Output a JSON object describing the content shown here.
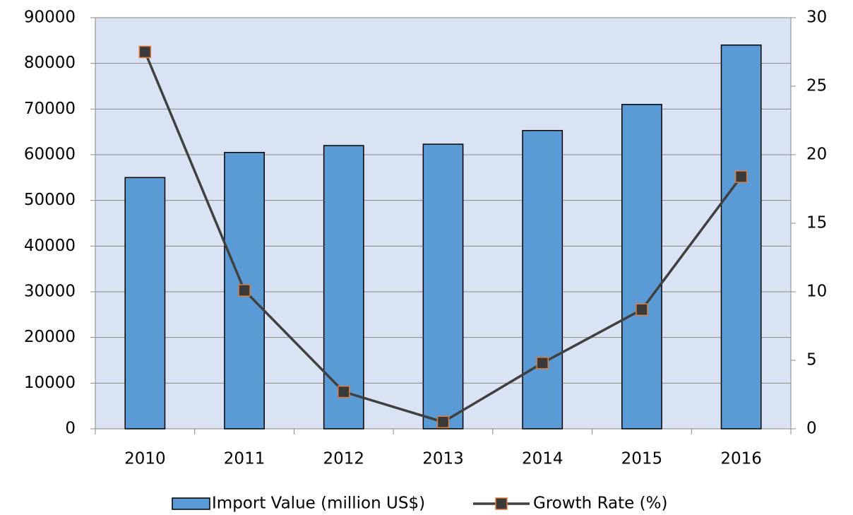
{
  "chart_data": {
    "type": "bar",
    "categories": [
      "2010",
      "2011",
      "2012",
      "2013",
      "2014",
      "2015",
      "2016"
    ],
    "series": [
      {
        "name": "Import Value (million US$)",
        "type": "bar",
        "color": "#5b9bd5",
        "values": [
          55000,
          60500,
          62000,
          62300,
          65300,
          71000,
          84000
        ]
      },
      {
        "name": "Growth Rate (%)",
        "type": "line",
        "axis": "y2",
        "color": "#404040",
        "marker_edge_color": "#e07b39",
        "values": [
          27.5,
          10.1,
          2.7,
          0.5,
          4.8,
          8.7,
          18.4
        ]
      }
    ],
    "ylim": [
      0,
      90000
    ],
    "yticks": [
      0,
      10000,
      20000,
      30000,
      40000,
      50000,
      60000,
      70000,
      80000,
      90000
    ],
    "y2lim": [
      0,
      30
    ],
    "y2ticks": [
      0,
      5,
      10,
      15,
      20,
      25,
      30
    ],
    "grid": true,
    "legend": "bottom",
    "plot_background": "#dae3f3"
  }
}
